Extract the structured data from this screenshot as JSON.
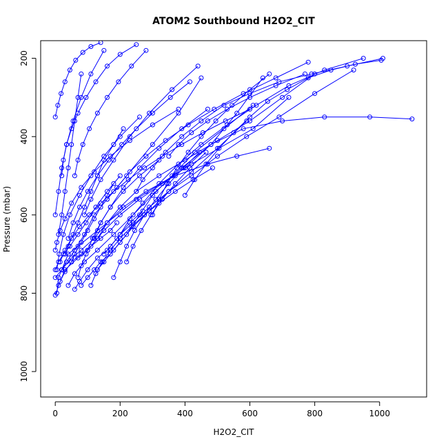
{
  "chart_data": {
    "type": "line",
    "title": "ATOM2 Southbound H2O2_CIT",
    "xlabel": "H2O2_CIT",
    "ylabel": "Pressure (mbar)",
    "xlim": [
      -45,
      1145
    ],
    "ylim": [
      1065,
      155
    ],
    "y_reversed": true,
    "x_ticks": [
      0,
      200,
      400,
      600,
      800,
      1000
    ],
    "y_ticks": [
      200,
      400,
      600,
      800,
      1000
    ],
    "grid": false,
    "series_color": "#0000ff",
    "marker": "open-circle",
    "series": [
      {
        "x": [
          5,
          10,
          20,
          35,
          60,
          90,
          120,
          160,
          220,
          300,
          380,
          450
        ],
        "y": [
          800,
          760,
          740,
          720,
          690,
          650,
          600,
          560,
          500,
          420,
          340,
          250
        ]
      },
      {
        "x": [
          0,
          15,
          30,
          50,
          80,
          110,
          140,
          170,
          190
        ],
        "y": [
          805,
          770,
          745,
          720,
          700,
          680,
          660,
          640,
          620
        ]
      },
      {
        "x": [
          10,
          30,
          70,
          100,
          150,
          200,
          260,
          330,
          400,
          480,
          560,
          640
        ],
        "y": [
          780,
          740,
          710,
          690,
          640,
          600,
          560,
          520,
          480,
          420,
          340,
          250
        ]
      },
      {
        "x": [
          0,
          20,
          40,
          70,
          130,
          250,
          420,
          610,
          720
        ],
        "y": [
          760,
          740,
          700,
          680,
          640,
          560,
          470,
          380,
          300
        ]
      },
      {
        "x": [
          40,
          60,
          90,
          130,
          180,
          240,
          310,
          390,
          480,
          580,
          700,
          830,
          970,
          1100
        ],
        "y": [
          780,
          750,
          720,
          690,
          650,
          600,
          540,
          480,
          420,
          380,
          360,
          350,
          350,
          355
        ]
      },
      {
        "x": [
          20,
          50,
          80,
          120,
          160,
          210,
          280,
          370,
          470,
          560,
          660
        ],
        "y": [
          740,
          710,
          690,
          660,
          620,
          580,
          540,
          500,
          470,
          450,
          430
        ]
      },
      {
        "x": [
          60,
          75,
          100,
          130,
          160,
          190,
          230,
          270
        ],
        "y": [
          790,
          770,
          740,
          710,
          690,
          660,
          620,
          590
        ]
      },
      {
        "x": [
          0,
          10,
          25,
          45,
          70,
          95,
          125,
          160,
          200
        ],
        "y": [
          740,
          720,
          700,
          680,
          650,
          620,
          580,
          540,
          500
        ]
      },
      {
        "x": [
          100,
          130,
          160,
          200,
          250,
          320,
          400,
          500,
          600,
          700,
          800
        ],
        "y": [
          690,
          660,
          620,
          580,
          540,
          500,
          460,
          410,
          360,
          300,
          240
        ]
      },
      {
        "x": [
          80,
          100,
          120,
          140,
          170,
          200,
          240,
          290,
          350,
          420,
          500,
          590
        ],
        "y": [
          780,
          760,
          740,
          720,
          700,
          670,
          630,
          590,
          540,
          490,
          430,
          360
        ]
      },
      {
        "x": [
          30,
          40,
          55,
          70,
          90,
          110,
          130,
          150,
          180,
          210
        ],
        "y": [
          700,
          680,
          650,
          620,
          580,
          540,
          500,
          460,
          420,
          380
        ]
      },
      {
        "x": [
          130,
          150,
          180,
          220,
          260,
          300,
          360,
          430,
          520,
          610
        ],
        "y": [
          740,
          720,
          690,
          650,
          600,
          550,
          500,
          440,
          380,
          320
        ]
      },
      {
        "x": [
          0,
          5,
          15,
          30,
          50,
          80,
          120,
          170,
          230,
          300,
          380
        ],
        "y": [
          690,
          670,
          640,
          610,
          570,
          530,
          490,
          450,
          410,
          370,
          330
        ]
      },
      {
        "x": [
          50,
          60,
          80,
          100,
          120,
          140,
          160,
          180
        ],
        "y": [
          720,
          700,
          670,
          640,
          610,
          580,
          550,
          520
        ]
      },
      {
        "x": [
          150,
          170,
          200,
          240,
          290,
          350,
          420,
          500,
          590,
          690,
          800,
          920
        ],
        "y": [
          700,
          680,
          650,
          620,
          580,
          540,
          500,
          450,
          400,
          350,
          290,
          230
        ]
      },
      {
        "x": [
          10,
          20,
          30,
          40,
          50,
          60,
          70,
          80
        ],
        "y": [
          650,
          600,
          540,
          480,
          420,
          360,
          300,
          240
        ]
      },
      {
        "x": [
          90,
          110,
          140,
          180,
          230,
          290,
          360,
          440
        ],
        "y": [
          600,
          560,
          510,
          460,
          400,
          340,
          280,
          220
        ]
      },
      {
        "x": [
          0,
          10,
          20,
          35,
          55,
          80,
          110,
          150
        ],
        "y": [
          600,
          540,
          480,
          420,
          360,
          300,
          240,
          180
        ]
      },
      {
        "x": [
          200,
          230,
          270,
          320,
          380,
          450,
          530,
          620,
          720,
          830,
          950
        ],
        "y": [
          650,
          610,
          570,
          520,
          470,
          420,
          370,
          320,
          270,
          230,
          200
        ]
      },
      {
        "x": [
          120,
          140,
          170,
          210,
          260,
          320
        ],
        "y": [
          660,
          620,
          580,
          540,
          500,
          460
        ]
      },
      {
        "x": [
          20,
          25,
          35,
          50,
          70,
          95,
          125,
          160,
          200,
          250
        ],
        "y": [
          500,
          460,
          420,
          380,
          340,
          300,
          260,
          220,
          190,
          165
        ]
      },
      {
        "x": [
          160,
          190,
          230,
          280,
          340,
          410,
          490,
          580,
          680,
          780
        ],
        "y": [
          560,
          530,
          490,
          450,
          410,
          370,
          330,
          290,
          250,
          210
        ]
      },
      {
        "x": [
          5,
          12,
          25,
          45,
          75,
          110,
          150,
          200,
          260
        ],
        "y": [
          740,
          700,
          650,
          600,
          550,
          500,
          450,
          400,
          350
        ]
      },
      {
        "x": [
          70,
          80,
          95,
          115,
          140,
          170,
          210,
          260,
          320,
          390,
          470
        ],
        "y": [
          760,
          730,
          700,
          660,
          620,
          580,
          530,
          480,
          430,
          380,
          330
        ]
      },
      {
        "x": [
          250,
          270,
          300,
          340,
          390,
          450,
          520,
          600,
          690,
          790,
          900,
          1010
        ],
        "y": [
          540,
          510,
          480,
          440,
          400,
          360,
          320,
          290,
          260,
          240,
          220,
          200
        ]
      },
      {
        "x": [
          40,
          55,
          75,
          100,
          130,
          165,
          205,
          250,
          300,
          355,
          415
        ],
        "y": [
          660,
          620,
          580,
          540,
          500,
          460,
          420,
          380,
          340,
          300,
          260
        ]
      },
      {
        "x": [
          180,
          200,
          220,
          245,
          275,
          310,
          350,
          395,
          445
        ],
        "y": [
          760,
          720,
          680,
          640,
          600,
          560,
          520,
          480,
          440
        ]
      },
      {
        "x": [
          300,
          320,
          345,
          375,
          410,
          450,
          495,
          545,
          600,
          660
        ],
        "y": [
          600,
          560,
          520,
          480,
          440,
          400,
          360,
          320,
          280,
          240
        ]
      },
      {
        "x": [
          15,
          30,
          50,
          75,
          105,
          140,
          180,
          225,
          275,
          330,
          390,
          455,
          525,
          600
        ],
        "y": [
          720,
          690,
          660,
          630,
          600,
          570,
          540,
          510,
          480,
          450,
          420,
          390,
          360,
          330
        ]
      },
      {
        "x": [
          350,
          380,
          420,
          470,
          530,
          600,
          680,
          770
        ],
        "y": [
          450,
          420,
          390,
          360,
          330,
          300,
          270,
          240
        ]
      },
      {
        "x": [
          0,
          8,
          18,
          30,
          45,
          63,
          85,
          110,
          140
        ],
        "y": [
          350,
          320,
          290,
          260,
          230,
          205,
          185,
          170,
          160
        ]
      },
      {
        "x": [
          110,
          125,
          145,
          170,
          200,
          235,
          275,
          320,
          370,
          425,
          485
        ],
        "y": [
          780,
          750,
          720,
          690,
          660,
          630,
          600,
          570,
          540,
          510,
          480
        ]
      },
      {
        "x": [
          60,
          70,
          85,
          105,
          130,
          160,
          195,
          235,
          280
        ],
        "y": [
          500,
          460,
          420,
          380,
          340,
          300,
          260,
          220,
          180
        ]
      },
      {
        "x": [
          220,
          240,
          265,
          295,
          330,
          370,
          415,
          465
        ],
        "y": [
          720,
          680,
          640,
          600,
          560,
          520,
          480,
          440
        ]
      },
      {
        "x": [
          400,
          430,
          465,
          505,
          550,
          600,
          655,
          715,
          780,
          850,
          925,
          1005
        ],
        "y": [
          550,
          510,
          470,
          430,
          390,
          350,
          310,
          280,
          250,
          230,
          215,
          205
        ]
      }
    ]
  }
}
